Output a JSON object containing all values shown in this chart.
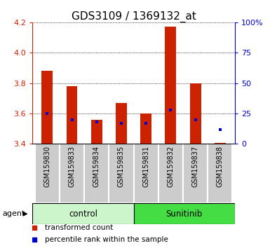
{
  "title": "GDS3109 / 1369132_at",
  "samples": [
    "GSM159830",
    "GSM159833",
    "GSM159834",
    "GSM159835",
    "GSM159831",
    "GSM159832",
    "GSM159837",
    "GSM159838"
  ],
  "red_values": [
    3.88,
    3.78,
    3.56,
    3.67,
    3.6,
    4.17,
    3.8,
    3.405
  ],
  "blue_percentiles": [
    25,
    20,
    18,
    17,
    17,
    28,
    20,
    12
  ],
  "ylim_left": [
    3.4,
    4.2
  ],
  "ylim_right": [
    0,
    100
  ],
  "yticks_left": [
    3.4,
    3.6,
    3.8,
    4.0,
    4.2
  ],
  "yticks_right": [
    0,
    25,
    50,
    75,
    100
  ],
  "ytick_labels_right": [
    "0",
    "25",
    "50",
    "75",
    "100%"
  ],
  "bar_bottom": 3.4,
  "groups": [
    {
      "label": "control",
      "indices": [
        0,
        1,
        2,
        3
      ],
      "color": "#ccf5cc"
    },
    {
      "label": "Sunitinib",
      "indices": [
        4,
        5,
        6,
        7
      ],
      "color": "#44dd44"
    }
  ],
  "red_color": "#cc2200",
  "blue_color": "#0000cc",
  "bar_width": 0.45,
  "legend_items": [
    {
      "color": "#cc2200",
      "label": "transformed count"
    },
    {
      "color": "#0000cc",
      "label": "percentile rank within the sample"
    }
  ],
  "title_fontsize": 11,
  "tick_fontsize": 8,
  "sample_label_fontsize": 7,
  "group_fontsize": 8.5,
  "bg_color": "#ffffff",
  "sample_area_color": "#d0d0d0",
  "sample_cell_color": "#cccccc"
}
